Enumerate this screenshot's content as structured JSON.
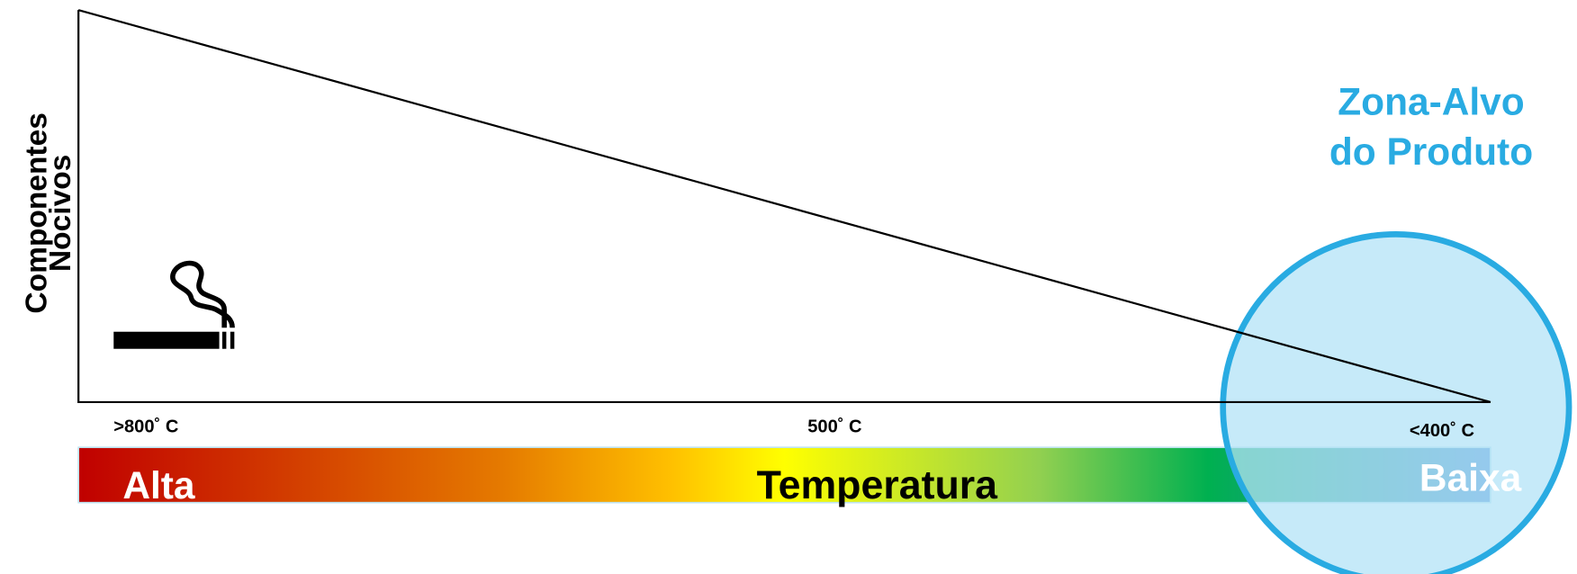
{
  "axis_label": {
    "lines": [
      "Componentes",
      "Nocivos"
    ]
  },
  "temperatures": [
    ">800˚ C",
    "500˚ C",
    "<400˚ C"
  ],
  "bar": {
    "left": "Alta",
    "center": "Temperatura",
    "right": "Baixa"
  },
  "target_zone": {
    "lines": [
      "Zona-Alvo",
      "do Produto"
    ]
  }
}
